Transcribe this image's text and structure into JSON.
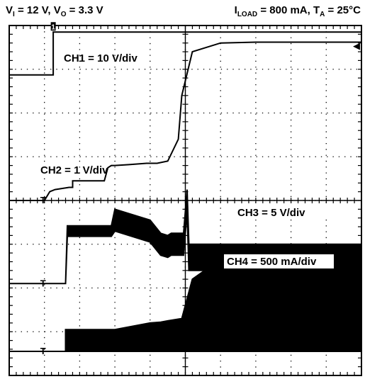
{
  "header": {
    "left": {
      "vi_base": "V",
      "vi_sub": "I",
      "vi_val": " = 12 V, ",
      "vo_base": "V",
      "vo_sub": "O",
      "vo_val": " = 3.3 V"
    },
    "right": {
      "i_base": "I",
      "i_sub": "LOAD",
      "i_val": " = 800 mA, ",
      "t_base": "T",
      "t_sub": "A",
      "t_val": " = 25°C"
    }
  },
  "chart_data": {
    "type": "line",
    "title": "",
    "grid": true,
    "divisions": {
      "horizontal": 10,
      "vertical": 8
    },
    "series": [
      {
        "name": "CH1 = 10 V/div",
        "label": "CH1 = 10 V/div",
        "color": "#000000",
        "filled": false,
        "x": [
          0,
          1.25,
          1.25,
          10
        ],
        "y": [
          6.87,
          6.87,
          7.85,
          7.85
        ]
      },
      {
        "name": "CH2 = 1 V/div",
        "label": "CH2 = 1 V/div",
        "color": "#000000",
        "filled": false,
        "x": [
          0,
          1.0,
          1.15,
          1.3,
          1.7,
          1.8,
          1.8,
          2.7,
          2.8,
          2.9,
          3.0,
          3.4,
          3.9,
          4.2,
          4.5,
          4.8,
          4.9,
          5.2,
          6.0,
          7.0,
          8.0,
          10.0
        ],
        "y": [
          4.0,
          4.0,
          4.2,
          4.25,
          4.3,
          4.3,
          4.45,
          4.45,
          4.75,
          4.8,
          4.8,
          4.82,
          4.85,
          4.85,
          4.9,
          5.4,
          6.4,
          7.4,
          7.6,
          7.62,
          7.62,
          7.62
        ]
      },
      {
        "name": "CH3 = 5 V/div",
        "label": "CH3 = 5 V/div",
        "color": "#000000",
        "filled": true,
        "center_x": [
          0,
          1.6,
          1.65,
          2.9,
          3.0,
          4.0,
          4.3,
          4.5,
          4.6,
          4.95,
          5.05,
          5.1,
          10.0
        ],
        "center_y": [
          2.1,
          2.1,
          3.3,
          3.3,
          3.55,
          3.3,
          3.0,
          2.95,
          3.0,
          3.0,
          4.0,
          2.7,
          2.7
        ],
        "band_width_div": [
          0,
          0,
          0.12,
          0.12,
          0.25,
          0.25,
          0.25,
          0.25,
          0.25,
          0.25,
          0.25,
          0.3,
          0.3
        ]
      },
      {
        "name": "CH4 = 500 mA/div",
        "label": "CH4 = 500 mA/div",
        "color": "#000000",
        "filled": true,
        "upper_x": [
          0,
          1.6,
          1.6,
          3.0,
          4.0,
          4.3,
          4.5,
          4.9,
          5.2,
          5.9,
          10.0
        ],
        "upper_y": [
          0.55,
          0.55,
          1.05,
          1.05,
          1.2,
          1.22,
          1.25,
          1.3,
          2.2,
          2.6,
          2.6
        ],
        "lower_x": [
          0,
          1.6,
          10.0
        ],
        "lower_y": [
          0.55,
          0.55,
          0.55
        ]
      }
    ],
    "markers": [
      {
        "channel": "CH1",
        "symbol": "1",
        "x": 1.2,
        "y": 7.85
      },
      {
        "channel": "CH2",
        "symbol": "T",
        "x": 1.0,
        "y": 4.0
      },
      {
        "channel": "CH3",
        "symbol": "T",
        "x": 1.0,
        "y": 2.1
      },
      {
        "channel": "CH4",
        "symbol": "T",
        "x": 1.0,
        "y": 0.55
      }
    ],
    "trigger_arrow": {
      "symbol": "◀",
      "y": 7.55
    }
  }
}
